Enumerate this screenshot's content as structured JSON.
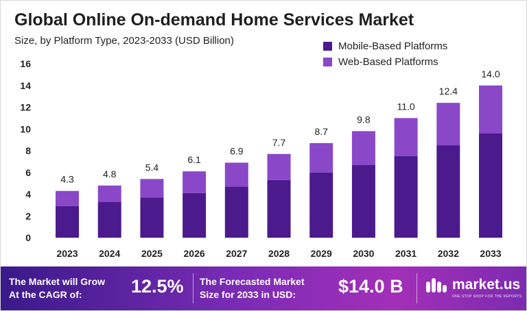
{
  "title": "Global Online On-demand Home Services Market",
  "subtitle": "Size, by Platform Type, 2023-2033 (USD Billion)",
  "colors": {
    "mobile": "#4b1a8c",
    "web": "#8a48c9"
  },
  "chart_data": {
    "type": "bar",
    "stacked": true,
    "categories": [
      "2023",
      "2024",
      "2025",
      "2026",
      "2027",
      "2028",
      "2029",
      "2030",
      "2031",
      "2032",
      "2033"
    ],
    "series": [
      {
        "name": "Mobile-Based Platforms",
        "values": [
          2.9,
          3.3,
          3.7,
          4.1,
          4.7,
          5.3,
          6.0,
          6.7,
          7.5,
          8.5,
          9.6
        ]
      },
      {
        "name": "Web-Based Platforms",
        "values": [
          1.4,
          1.5,
          1.7,
          2.0,
          2.2,
          2.4,
          2.7,
          3.1,
          3.5,
          3.9,
          4.4
        ]
      }
    ],
    "totals": [
      "4.3",
      "4.8",
      "5.4",
      "6.1",
      "6.9",
      "7.7",
      "8.7",
      "9.8",
      "11.0",
      "12.4",
      "14.0"
    ],
    "yticks": [
      "0",
      "2",
      "4",
      "6",
      "8",
      "10",
      "12",
      "14",
      "16"
    ],
    "ylim": [
      0,
      16
    ],
    "grid": false,
    "legend_position": "top-right"
  },
  "footer": {
    "cagr_label_line1": "The Market will Grow",
    "cagr_label_line2": "At the CAGR of:",
    "cagr_value": "12.5%",
    "forecast_label_line1": "The Forecasted Market",
    "forecast_label_line2": "Size for 2033 in USD:",
    "forecast_value": "$14.0 B",
    "logo_name": "market.us",
    "logo_tagline": "ONE STOP SHOP FOR THE REPORTS"
  }
}
